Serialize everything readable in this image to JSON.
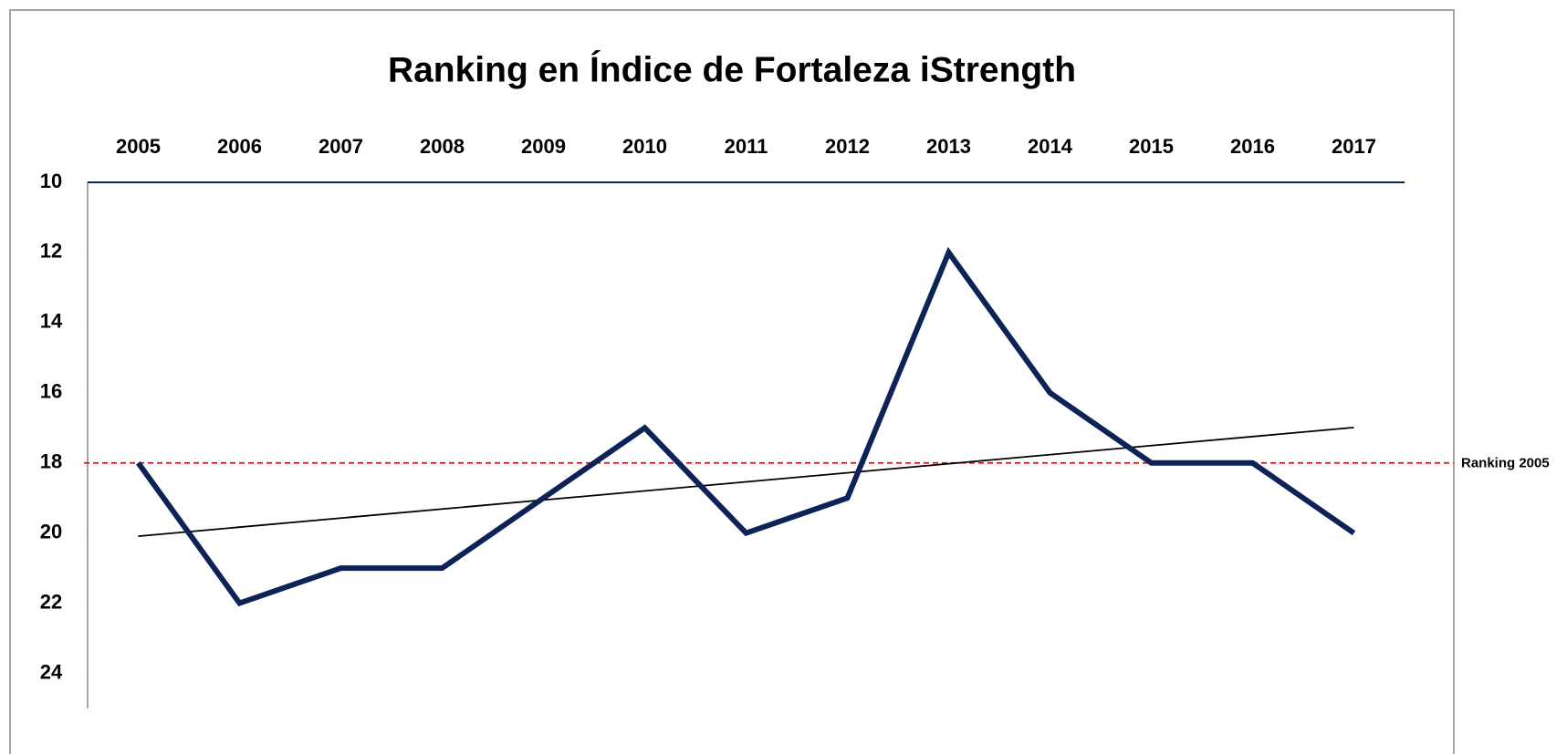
{
  "chart_data": {
    "type": "line",
    "title": "Ranking en Índice de Fortaleza iStrength",
    "categories": [
      "2005",
      "2006",
      "2007",
      "2008",
      "2009",
      "2010",
      "2011",
      "2012",
      "2013",
      "2014",
      "2015",
      "2016",
      "2017"
    ],
    "series": [
      {
        "color": "#0d2357",
        "values": [
          18,
          22,
          21,
          21,
          19,
          17,
          20,
          19,
          12,
          16,
          18,
          18,
          20
        ]
      }
    ],
    "trend_line": {
      "color": "#000000",
      "values": [
        20.09,
        16.99
      ]
    },
    "reference_line": {
      "label": "Ranking 2005",
      "value": 18,
      "color": "#ff0000"
    },
    "ylim": [
      10,
      25
    ],
    "yticks": [
      10,
      12,
      14,
      16,
      18,
      20,
      22,
      24
    ],
    "y_inverted": true
  }
}
